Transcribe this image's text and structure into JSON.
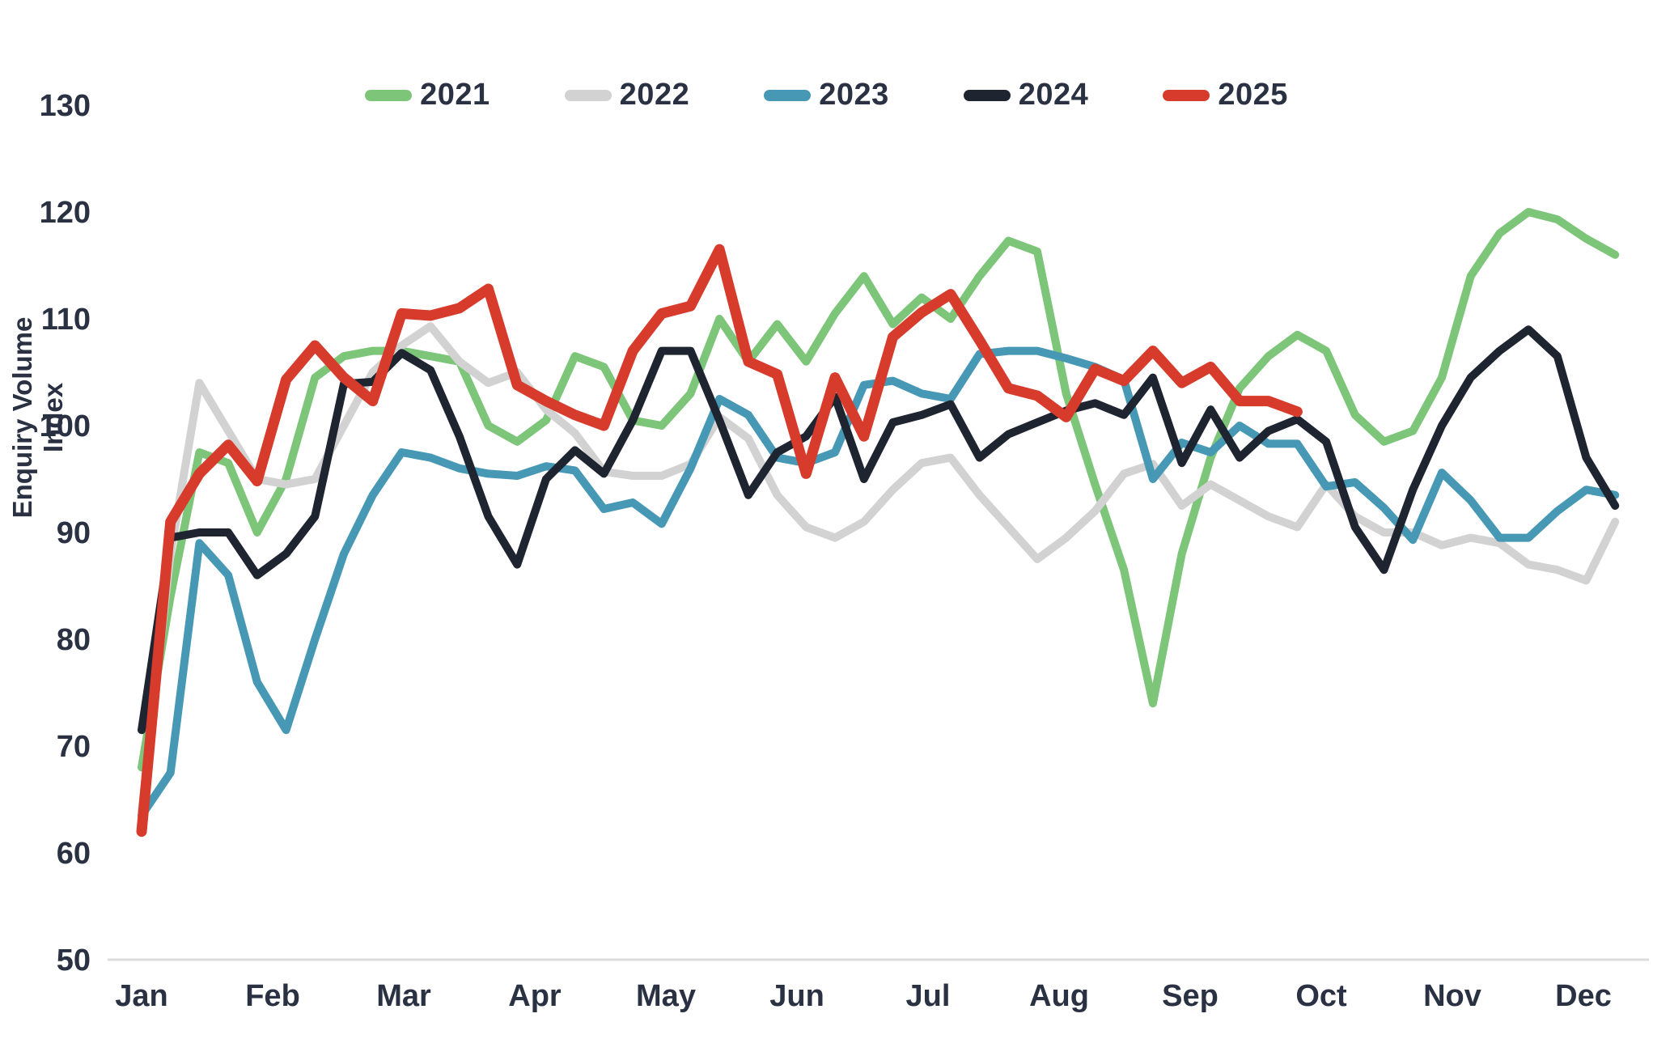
{
  "chart_data": {
    "type": "line",
    "title": "",
    "ylabel": "Enquiry Volume Index",
    "x_unit": "week",
    "x_axis": {
      "tick_labels": [
        "Jan",
        "Feb",
        "Mar",
        "Apr",
        "May",
        "Jun",
        "Jul",
        "Aug",
        "Sep",
        "Oct",
        "Nov",
        "Dec"
      ]
    },
    "y_axis": {
      "min": 50,
      "max": 130,
      "step": 10,
      "tick_labels": [
        130,
        120,
        110,
        100,
        90,
        80,
        70,
        60,
        50
      ]
    },
    "grid": "off",
    "legend_position": "top",
    "axis_line_color": "#dcdcdc",
    "text_color": "#2a3142",
    "series": [
      {
        "name": "2021",
        "color": "#7cc579",
        "stroke_width": 10,
        "values": [
          68,
          84,
          97.5,
          96.5,
          90,
          95,
          104.5,
          106.5,
          107,
          107,
          106.5,
          106,
          100,
          98.5,
          100.5,
          106.5,
          105.5,
          100.5,
          100,
          103,
          110,
          106,
          109.5,
          106,
          110.5,
          114,
          109.5,
          112,
          110,
          114,
          117.3,
          116.3,
          103,
          94.5,
          86.5,
          74,
          88,
          97,
          103.5,
          106.5,
          108.5,
          107,
          101,
          98.5,
          99.5,
          104.5,
          114,
          118,
          120,
          119.3,
          117.5,
          116
        ]
      },
      {
        "name": "2022",
        "color": "#d2d2d2",
        "stroke_width": 10,
        "values": [
          63.8,
          88,
          104,
          99.5,
          95,
          94.5,
          95,
          100,
          105,
          107.5,
          109.3,
          106,
          104,
          105,
          101.5,
          99.3,
          95.7,
          95.3,
          95.3,
          96.4,
          100.8,
          98.8,
          93.5,
          90.5,
          89.5,
          91,
          94,
          96.5,
          97,
          93.5,
          90.5,
          87.5,
          89.5,
          92,
          95.5,
          96.4,
          92.5,
          94.5,
          93,
          91.5,
          90.5,
          94.5,
          91.5,
          90,
          90,
          88.8,
          89.5,
          89,
          87,
          86.5,
          85.5,
          91
        ]
      },
      {
        "name": "2023",
        "color": "#4698b4",
        "stroke_width": 10,
        "values": [
          63.5,
          67.5,
          89,
          86,
          76,
          71.5,
          80,
          88,
          93.5,
          97.5,
          97,
          96,
          95.5,
          95.3,
          96.2,
          95.8,
          92.2,
          92.8,
          90.8,
          96,
          102.5,
          101,
          97,
          96.5,
          97.5,
          103.8,
          104.2,
          103,
          102.5,
          106.7,
          107,
          107,
          106.3,
          105.5,
          104.3,
          95,
          98.4,
          97.5,
          100,
          98.3,
          98.3,
          94.3,
          94.7,
          92.3,
          89.3,
          95.6,
          93,
          89.5,
          89.5,
          92,
          94,
          93.5
        ]
      },
      {
        "name": "2024",
        "color": "#1e2430",
        "stroke_width": 10,
        "values": [
          71.5,
          89.5,
          90,
          90,
          86,
          88,
          91.5,
          103.9,
          104.1,
          106.8,
          105.2,
          99,
          91.5,
          87,
          95,
          97.7,
          95.5,
          100.5,
          107,
          107,
          100.5,
          93.5,
          97.5,
          99,
          102.7,
          95,
          100.3,
          101,
          102,
          97,
          99.2,
          100.3,
          101.4,
          102.1,
          101,
          104.5,
          96.5,
          101.5,
          97,
          99.5,
          100.6,
          98.5,
          90.5,
          86.5,
          94,
          100,
          104.5,
          107,
          109,
          106.5,
          97,
          92.5
        ]
      },
      {
        "name": "2025",
        "color": "#d73b2c",
        "stroke_width": 13,
        "values": [
          62,
          91,
          95.5,
          98.2,
          94.8,
          104.3,
          107.5,
          104.5,
          102.3,
          110.5,
          110.3,
          111,
          112.8,
          103.8,
          102.3,
          101,
          100,
          107,
          110.5,
          111.2,
          116.5,
          106,
          104.8,
          95.5,
          104.5,
          99,
          108.3,
          110.6,
          112.3,
          108,
          103.5,
          102.8,
          100.8,
          105.3,
          104.2,
          107,
          104,
          105.5,
          102.3,
          102.3,
          101.3
        ]
      }
    ]
  }
}
